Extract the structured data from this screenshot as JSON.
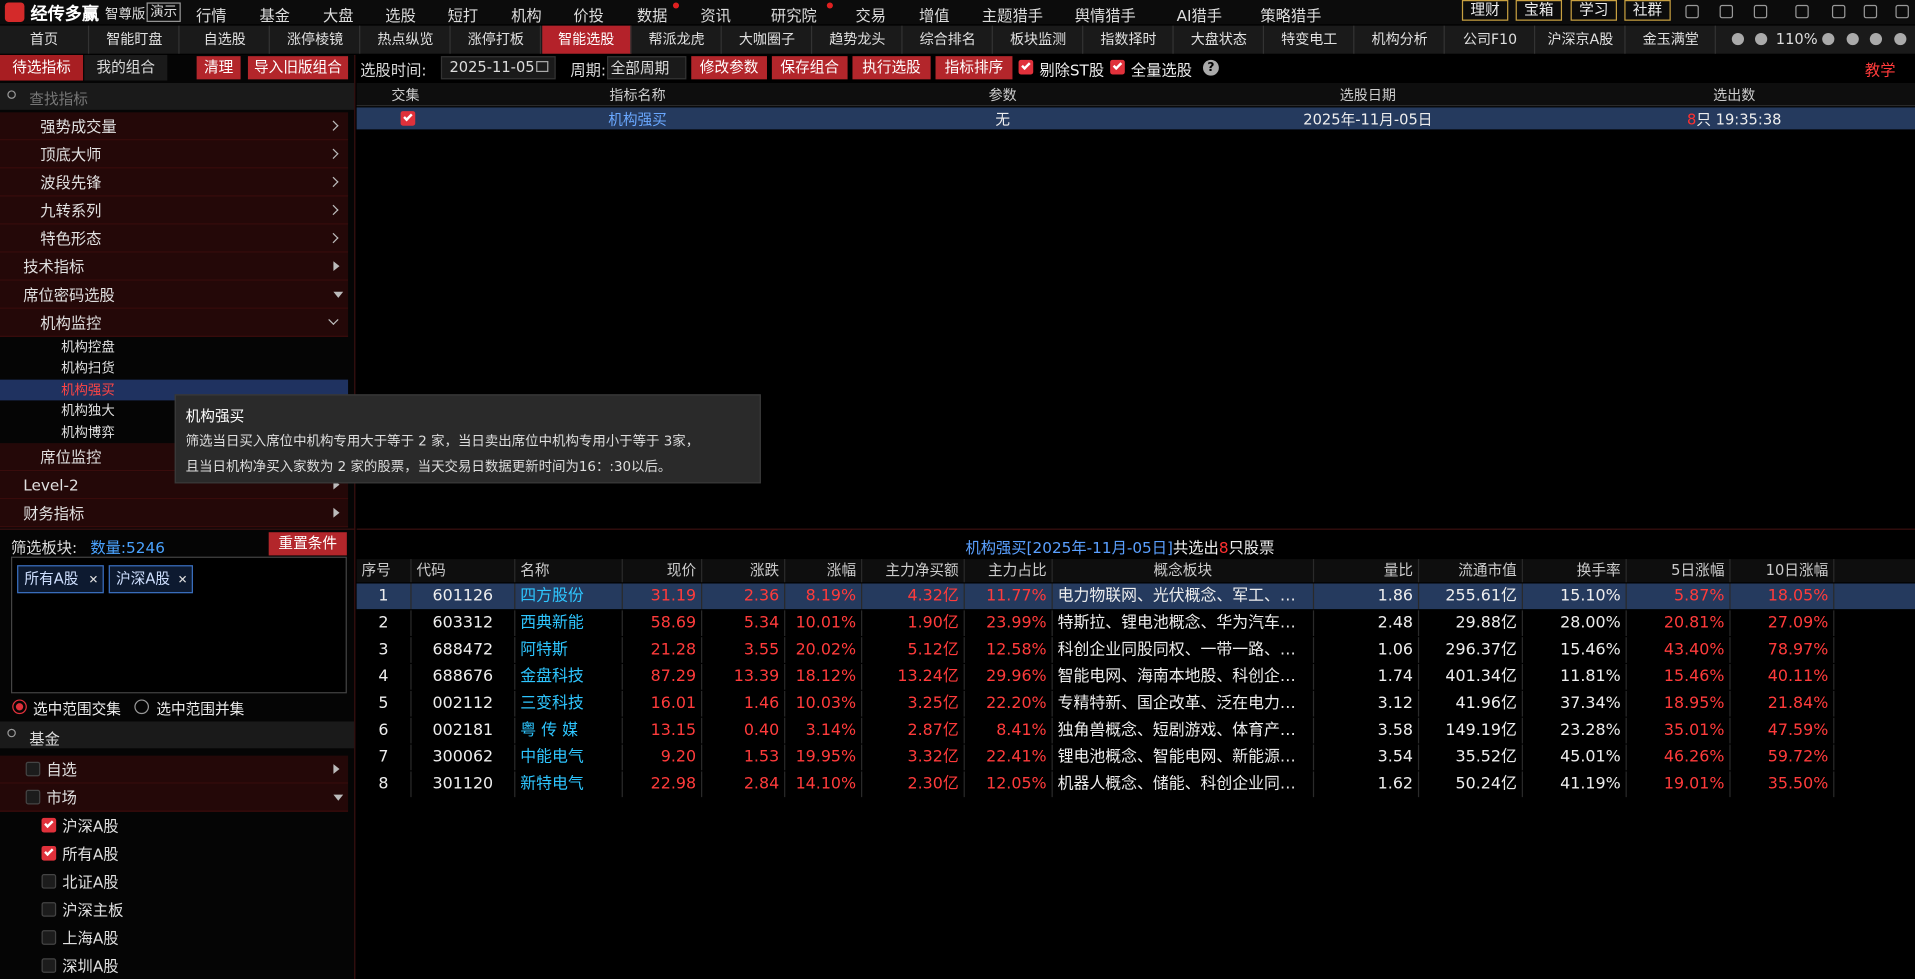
{
  "top_menu": {
    "logo": "经传多赢",
    "edition": "智尊版",
    "demo": "演示",
    "items": [
      "行情",
      "基金",
      "大盘",
      "选股",
      "短打",
      "机构",
      "价投",
      "数据",
      "资讯",
      "研究院",
      "交易",
      "增值",
      "主题猎手",
      "舆情猎手",
      "AI猎手",
      "策略猎手"
    ],
    "buttons": [
      "理财",
      "宝箱",
      "学习",
      "社群"
    ]
  },
  "tabs": {
    "items": [
      "首页",
      "智能盯盘",
      "自选股",
      "涨停棱镜",
      "热点纵览",
      "涨停打板",
      "智能选股",
      "帮派龙虎",
      "大咖圈子",
      "趋势龙头",
      "综合排名",
      "板块监测",
      "指数择时",
      "大盘状态",
      "特变电工",
      "机构分析",
      "公司F10",
      "沪深京A股",
      "金玉满堂"
    ],
    "active": 6,
    "zoom": "110%"
  },
  "left_panel": {
    "tabs": [
      "待选指标",
      "我的组合"
    ],
    "buttons": [
      "清理",
      "导入旧版组合"
    ],
    "search_placeholder": "查找指标",
    "tree": [
      {
        "label": "强势成交量",
        "level": 2,
        "expanded": false
      },
      {
        "label": "顶底大师",
        "level": 2,
        "expanded": false
      },
      {
        "label": "波段先锋",
        "level": 2,
        "expanded": false
      },
      {
        "label": "九转系列",
        "level": 2,
        "expanded": false
      },
      {
        "label": "特色形态",
        "level": 2,
        "expanded": false
      },
      {
        "label": "技术指标",
        "level": 1,
        "expanded": false
      },
      {
        "label": "席位密码选股",
        "level": 1,
        "expanded": true
      },
      {
        "label": "机构监控",
        "level": 2,
        "expanded": true
      },
      {
        "label": "机构控盘",
        "level": 3
      },
      {
        "label": "机构扫货",
        "level": 3
      },
      {
        "label": "机构强买",
        "level": 3,
        "selected": true
      },
      {
        "label": "机构独大",
        "level": 3
      },
      {
        "label": "机构博弈",
        "level": 3
      },
      {
        "label": "席位监控",
        "level": 2,
        "expanded": false
      },
      {
        "label": "Level-2",
        "level": 1,
        "expanded": false
      },
      {
        "label": "财务指标",
        "level": 1,
        "expanded": false
      }
    ]
  },
  "tooltip": {
    "title": "机构强买",
    "lines": [
      "筛选当日买入席位中机构专用大于等于 2 家，当日卖出席位中机构专用小于等于 3家，",
      "且当日机构净买入家数为 2 家的股票，当天交易日数据更新时间为16：:30以后。"
    ]
  },
  "filter": {
    "label": "筛选板块:",
    "count": "数量:5246",
    "reset": "重置条件",
    "tags": [
      "所有A股",
      "沪深A股"
    ],
    "radios": [
      {
        "label": "选中范围交集",
        "checked": true
      },
      {
        "label": "选中范围并集",
        "checked": false
      }
    ],
    "search": "基金",
    "tree": [
      {
        "label": "自选",
        "level": 1,
        "expanded": false,
        "checked": false
      },
      {
        "label": "市场",
        "level": 1,
        "expanded": true,
        "checked": false
      },
      {
        "label": "沪深A股",
        "level": 2,
        "checked": true
      },
      {
        "label": "所有A股",
        "level": 2,
        "checked": true
      },
      {
        "label": "北证A股",
        "level": 2,
        "checked": false
      },
      {
        "label": "沪深主板",
        "level": 2,
        "checked": false
      },
      {
        "label": "上海A股",
        "level": 2,
        "checked": false
      },
      {
        "label": "深圳A股",
        "level": 2,
        "checked": false
      }
    ]
  },
  "toolbar": {
    "time_label": "选股时间:",
    "date": "2025-11-05",
    "period_label": "周期:",
    "period": "全部周期",
    "buttons": [
      "修改参数",
      "保存组合",
      "执行选股",
      "指标排序"
    ],
    "checkboxes": [
      {
        "label": "剔除ST股",
        "checked": true
      },
      {
        "label": "全量选股",
        "checked": true
      }
    ],
    "help_icon": "?",
    "help": "教学"
  },
  "indicator_table": {
    "headers": [
      "交集",
      "指标名称",
      "参数",
      "选股日期",
      "选出数"
    ],
    "rows": [
      {
        "checked": true,
        "name": "机构强买",
        "params": "无",
        "date": "2025年-11月-05日",
        "count": "8",
        "time": "只 19:35:38"
      }
    ]
  },
  "result": {
    "caption": {
      "title": "机构强买[2025年-11月-05日]",
      "text": "共选出",
      "count": "8",
      "suffix": "只股票"
    },
    "headers": [
      "序号",
      "代码",
      "名称",
      "现价",
      "涨跌",
      "涨幅",
      "主力净买额",
      "主力占比",
      "概念板块",
      "量比",
      "流通市值",
      "换手率",
      "5日涨幅",
      "10日涨幅"
    ],
    "selected": 0,
    "rows": [
      [
        "1",
        "601126",
        "四方股份",
        "31.19",
        "2.36",
        "8.19%",
        "4.32亿",
        "11.77%",
        "电力物联网、光伏概念、军工、…",
        "1.86",
        "255.61亿",
        "15.10%",
        "5.87%",
        "18.05%"
      ],
      [
        "2",
        "603312",
        "西典新能",
        "58.69",
        "5.34",
        "10.01%",
        "1.90亿",
        "23.99%",
        "特斯拉、锂电池概念、华为汽车…",
        "2.48",
        "29.88亿",
        "28.00%",
        "20.81%",
        "27.09%"
      ],
      [
        "3",
        "688472",
        "阿特斯",
        "21.28",
        "3.55",
        "20.02%",
        "5.12亿",
        "12.58%",
        "科创企业同股同权、一带一路、…",
        "1.06",
        "296.37亿",
        "15.46%",
        "43.40%",
        "78.97%"
      ],
      [
        "4",
        "688676",
        "金盘科技",
        "87.29",
        "13.39",
        "18.12%",
        "13.24亿",
        "29.96%",
        "智能电网、海南本地股、科创企…",
        "1.74",
        "401.34亿",
        "11.81%",
        "15.46%",
        "40.11%"
      ],
      [
        "5",
        "002112",
        "三变科技",
        "16.01",
        "1.46",
        "10.03%",
        "3.25亿",
        "22.20%",
        "专精特新、国企改革、泛在电力…",
        "3.12",
        "41.96亿",
        "37.34%",
        "18.95%",
        "21.84%"
      ],
      [
        "6",
        "002181",
        "粤 传 媒",
        "13.15",
        "0.40",
        "3.14%",
        "2.87亿",
        "8.41%",
        "独角兽概念、短剧游戏、体育产…",
        "3.58",
        "149.19亿",
        "23.28%",
        "35.01%",
        "47.59%"
      ],
      [
        "7",
        "300062",
        "中能电气",
        "9.20",
        "1.53",
        "19.95%",
        "3.32亿",
        "22.41%",
        "锂电池概念、智能电网、新能源…",
        "3.54",
        "35.52亿",
        "45.01%",
        "46.26%",
        "59.72%"
      ],
      [
        "8",
        "301120",
        "新特电气",
        "22.98",
        "2.84",
        "14.10%",
        "2.30亿",
        "12.05%",
        "机器人概念、储能、科创企业同…",
        "1.62",
        "50.24亿",
        "41.19%",
        "19.01%",
        "35.50%"
      ]
    ]
  }
}
